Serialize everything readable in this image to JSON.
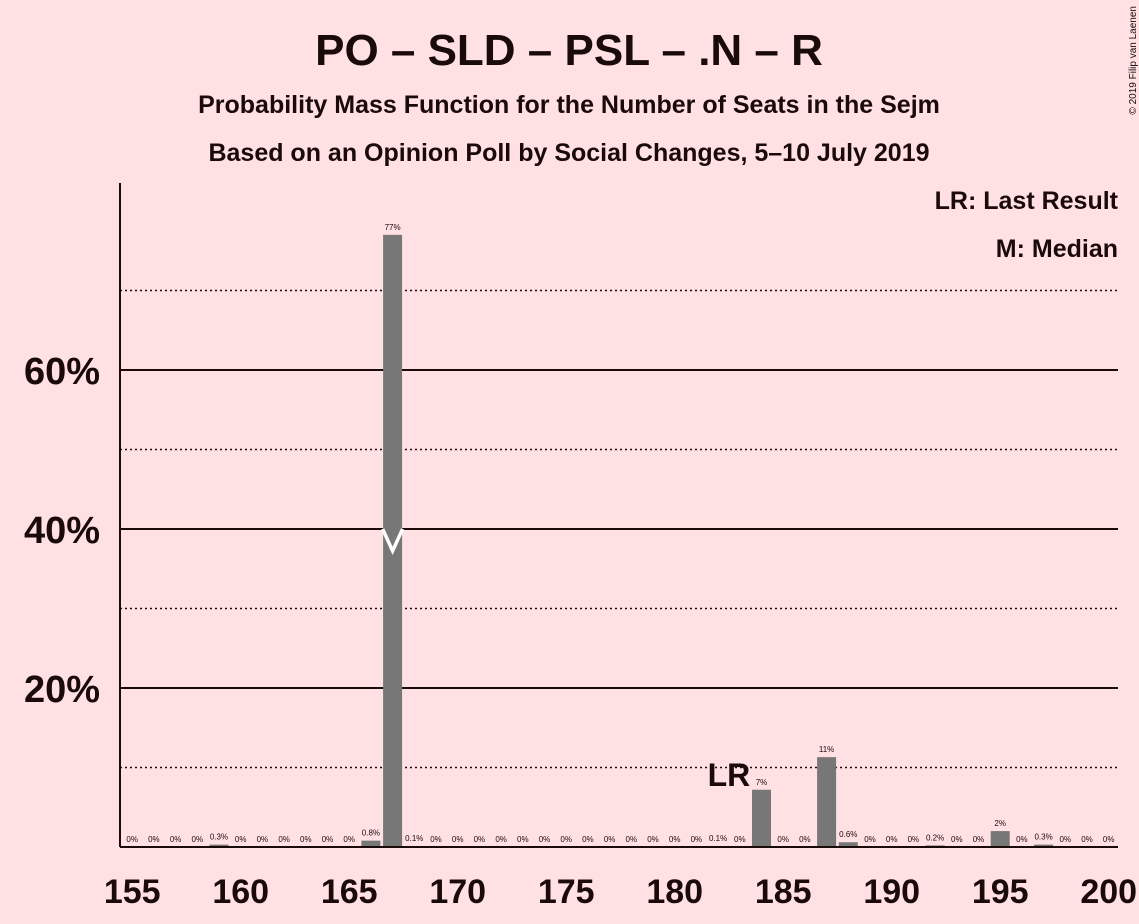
{
  "chart_data": {
    "type": "bar",
    "title": "PO – SLD – PSL – .N – R",
    "subtitle": "Probability Mass Function for the Number of Seats in the Sejm",
    "subtitle2": "Based on an Opinion Poll by Social Changes, 5–10 July 2019",
    "copyright": "© 2019 Filip van Laenen",
    "legend": {
      "position": "top-right",
      "items": [
        "LR: Last Result",
        "M: Median"
      ]
    },
    "x": [
      155,
      156,
      157,
      158,
      159,
      160,
      161,
      162,
      163,
      164,
      165,
      166,
      167,
      168,
      169,
      170,
      171,
      172,
      173,
      174,
      175,
      176,
      177,
      178,
      179,
      180,
      181,
      182,
      183,
      184,
      185,
      186,
      187,
      188,
      189,
      190,
      191,
      192,
      193,
      194,
      195,
      196,
      197,
      198,
      199,
      200
    ],
    "values": [
      0,
      0,
      0,
      0,
      0.3,
      0,
      0,
      0,
      0,
      0,
      0,
      0.8,
      77,
      0.1,
      0,
      0,
      0,
      0,
      0,
      0,
      0,
      0,
      0,
      0,
      0,
      0,
      0,
      0.1,
      0,
      7.2,
      0,
      0,
      11.3,
      0.6,
      0,
      0,
      0,
      0.2,
      0,
      0,
      2,
      0,
      0.3,
      0,
      0,
      0
    ],
    "labels": [
      "0%",
      "0%",
      "0%",
      "0%",
      "0.3%",
      "0%",
      "0%",
      "0%",
      "0%",
      "0%",
      "0%",
      "0.8%",
      "77%",
      "0.1%",
      "0%",
      "0%",
      "0%",
      "0%",
      "0%",
      "0%",
      "0%",
      "0%",
      "0%",
      "0%",
      "0%",
      "0%",
      "0%",
      "0.1%",
      "0%",
      "7%",
      "0%",
      "0%",
      "11%",
      "0.6%",
      "0%",
      "0%",
      "0%",
      "0.2%",
      "0%",
      "0%",
      "2%",
      "0%",
      "0.3%",
      "0%",
      "0%",
      "0%"
    ],
    "xticks": [
      155,
      160,
      165,
      170,
      175,
      180,
      185,
      190,
      195,
      200
    ],
    "yticks": [
      20,
      40,
      60
    ],
    "ytick_labels": [
      "20%",
      "40%",
      "60%"
    ],
    "ylim": [
      0,
      84
    ],
    "xlim": [
      155,
      200
    ],
    "grid": {
      "solid": [
        20,
        40,
        60
      ],
      "dotted": [
        10,
        30,
        50,
        70
      ]
    },
    "last_result": {
      "x": 183,
      "label": "LR"
    },
    "median": {
      "x": 167,
      "label": "M"
    },
    "colors": {
      "bar": "#777777",
      "background": "#ffe0e3",
      "text": "#1a0a0a",
      "median_marker": "#ffffff"
    }
  }
}
